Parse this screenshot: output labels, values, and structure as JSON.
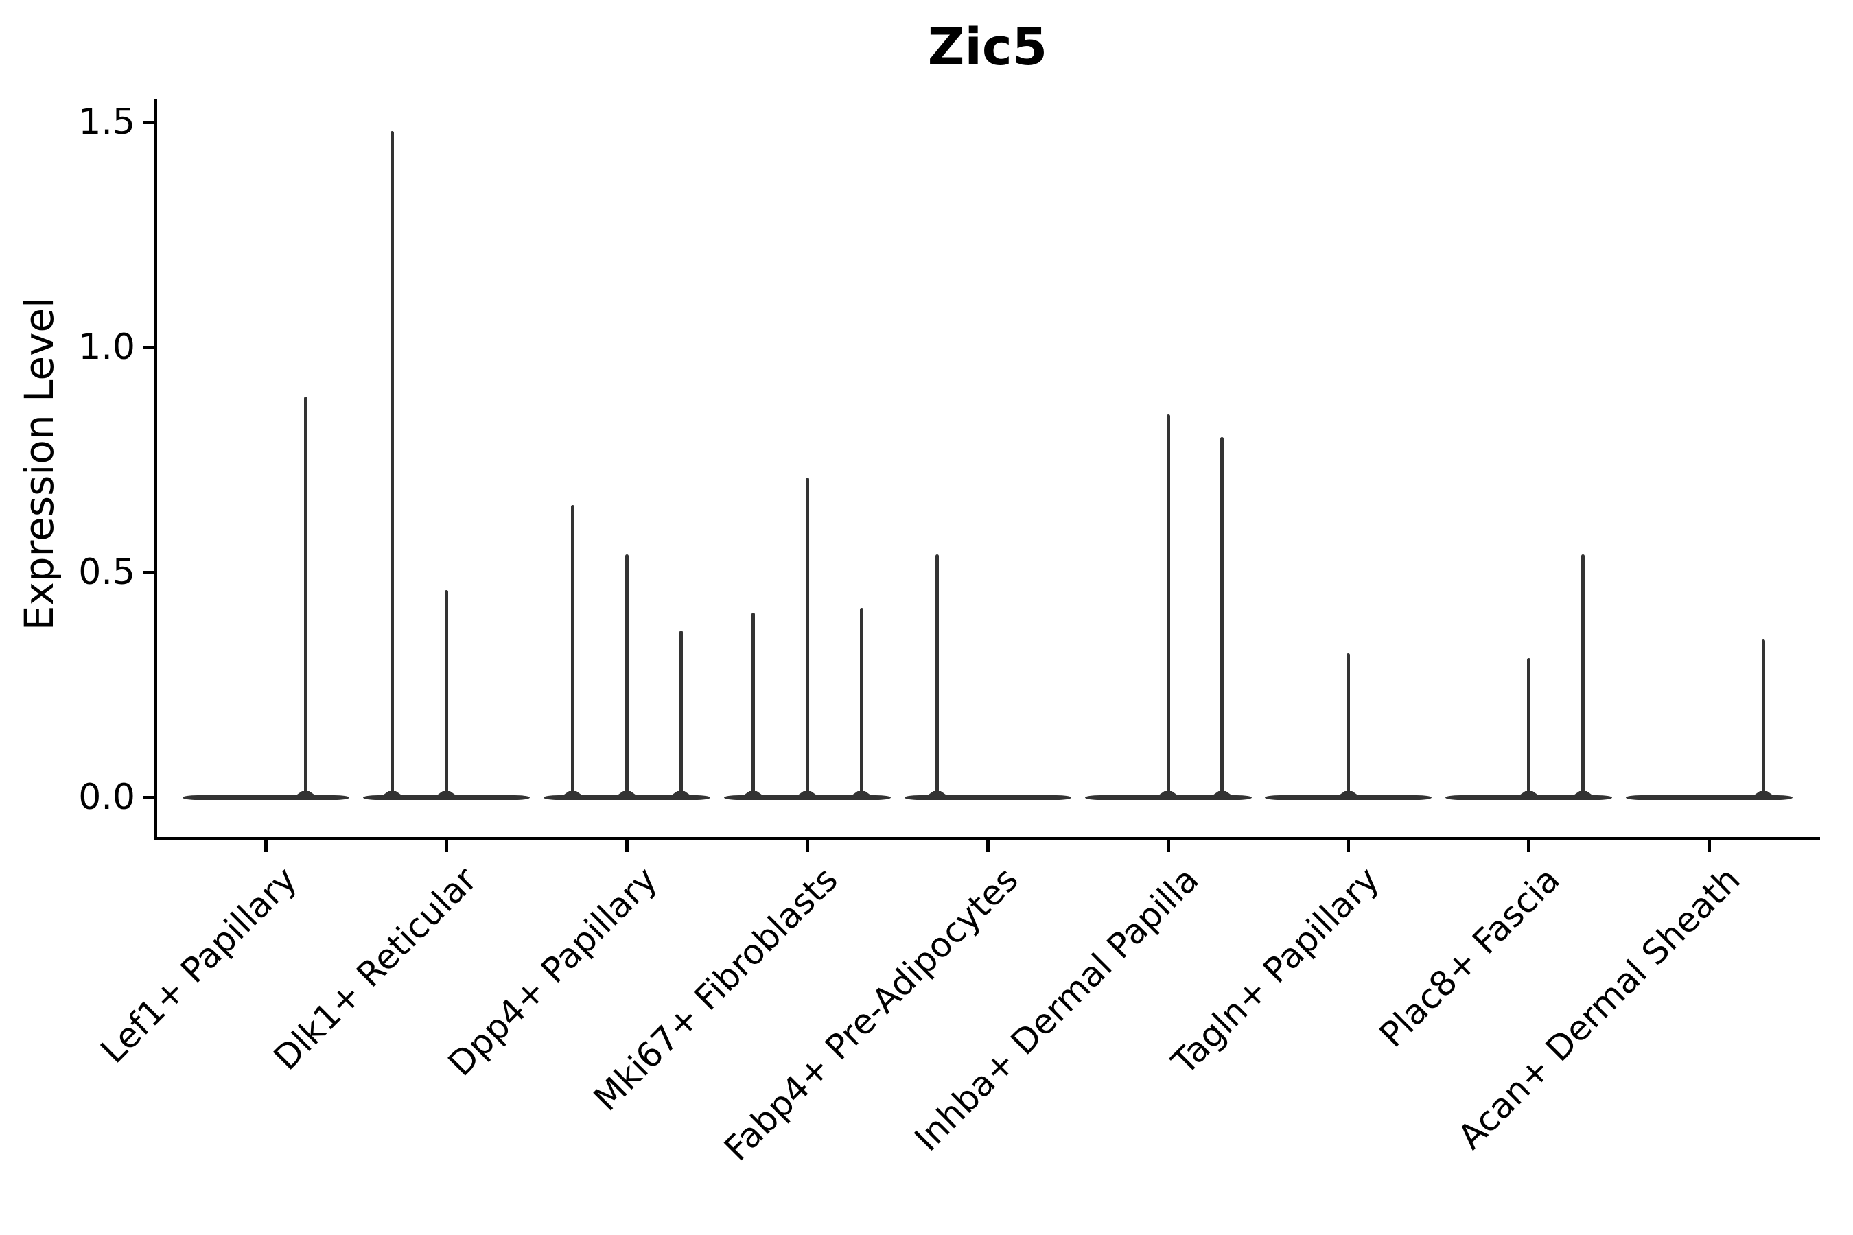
{
  "header": {
    "title": "Zic5"
  },
  "chart_data": {
    "type": "violin",
    "title": "Zic5",
    "xlabel": "",
    "ylabel": "Expression Level",
    "ylim": [
      -0.06,
      1.56
    ],
    "grid": false,
    "legend": false,
    "ytick_labels": [
      "0.0",
      "0.5",
      "1.0",
      "1.5"
    ],
    "ytick_values": [
      0.0,
      0.5,
      1.0,
      1.5
    ],
    "categories": [
      "Lef1+ Papillary",
      "Dlk1+ Reticular",
      "Dpp4+ Papillary",
      "Mki67+ Fibroblasts",
      "Fabp4+ Pre-Adipocytes",
      "Inhba+ Dermal Papilla",
      "Tagln+ Papillary",
      "Plac8+ Fascia",
      "Acan+ Dermal Sheath"
    ],
    "series": [
      {
        "name": "Lef1+ Papillary",
        "bulk_value": 0.0,
        "spikes": [
          {
            "x_offset": 0.22,
            "peak": 0.89
          }
        ]
      },
      {
        "name": "Dlk1+ Reticular",
        "bulk_value": 0.0,
        "spikes": [
          {
            "x_offset": -0.3,
            "peak": 1.48
          },
          {
            "x_offset": 0.0,
            "peak": 0.46
          }
        ]
      },
      {
        "name": "Dpp4+ Papillary",
        "bulk_value": 0.0,
        "spikes": [
          {
            "x_offset": -0.3,
            "peak": 0.65
          },
          {
            "x_offset": 0.0,
            "peak": 0.54
          },
          {
            "x_offset": 0.3,
            "peak": 0.37
          }
        ]
      },
      {
        "name": "Mki67+ Fibroblasts",
        "bulk_value": 0.0,
        "spikes": [
          {
            "x_offset": -0.3,
            "peak": 0.41
          },
          {
            "x_offset": 0.0,
            "peak": 0.71
          },
          {
            "x_offset": 0.3,
            "peak": 0.42
          }
        ]
      },
      {
        "name": "Fabp4+ Pre-Adipocytes",
        "bulk_value": 0.0,
        "spikes": [
          {
            "x_offset": -0.28,
            "peak": 0.54
          }
        ]
      },
      {
        "name": "Inhba+ Dermal Papilla",
        "bulk_value": 0.0,
        "spikes": [
          {
            "x_offset": 0.0,
            "peak": 0.85
          },
          {
            "x_offset": 0.3,
            "peak": 0.8
          }
        ]
      },
      {
        "name": "Tagln+ Papillary",
        "bulk_value": 0.0,
        "spikes": [
          {
            "x_offset": 0.0,
            "peak": 0.32
          }
        ]
      },
      {
        "name": "Plac8+ Fascia",
        "bulk_value": 0.0,
        "spikes": [
          {
            "x_offset": 0.0,
            "peak": 0.31
          },
          {
            "x_offset": 0.3,
            "peak": 0.54
          }
        ]
      },
      {
        "name": "Acan+ Dermal Sheath",
        "bulk_value": 0.0,
        "spikes": [
          {
            "x_offset": 0.3,
            "peak": 0.35
          }
        ]
      }
    ],
    "colors": {
      "violin": "#333333",
      "axis": "#000000",
      "text": "#000000",
      "background": "#ffffff"
    }
  }
}
